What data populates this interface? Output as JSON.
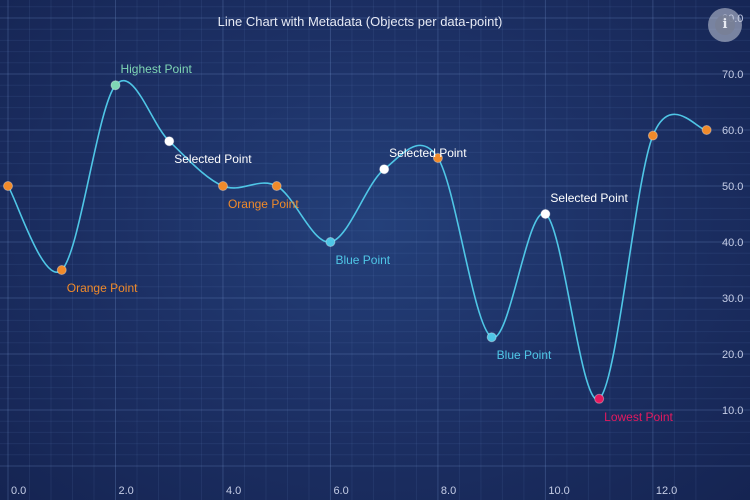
{
  "chart_data": {
    "type": "line",
    "title": "Line Chart with Metadata (Objects per data-point)",
    "xlim": [
      0,
      13.1
    ],
    "ylim": [
      0,
      80
    ],
    "x_ticks": [
      "0.0",
      "2.0",
      "4.0",
      "6.0",
      "8.0",
      "10.0",
      "12.0"
    ],
    "x_tick_values": [
      0,
      2,
      4,
      6,
      8,
      10,
      12
    ],
    "y_ticks": [
      "10.0",
      "20.0",
      "30.0",
      "40.0",
      "50.0",
      "60.0",
      "70.0",
      "80.0"
    ],
    "y_tick_values": [
      10,
      20,
      30,
      40,
      50,
      60,
      70,
      80
    ],
    "y_axis_position": "right",
    "grid": true,
    "line_color": "#4fc6e6",
    "points": [
      {
        "x": 0,
        "y": 50,
        "color": "#f08a2a",
        "label": ""
      },
      {
        "x": 1,
        "y": 35,
        "color": "#f08a2a",
        "label": "Orange Point"
      },
      {
        "x": 2,
        "y": 68,
        "color": "#7fd6b5",
        "label": "Highest Point"
      },
      {
        "x": 3,
        "y": 58,
        "color": "#ffffff",
        "label": "Selected Point"
      },
      {
        "x": 4,
        "y": 50,
        "color": "#f08a2a",
        "label": "Orange Point"
      },
      {
        "x": 5,
        "y": 50,
        "color": "#f08a2a",
        "label": ""
      },
      {
        "x": 6,
        "y": 40,
        "color": "#4fc6e6",
        "label": "Blue Point"
      },
      {
        "x": 7,
        "y": 53,
        "color": "#ffffff",
        "label": "Selected Point"
      },
      {
        "x": 8,
        "y": 55,
        "color": "#f08a2a",
        "label": ""
      },
      {
        "x": 9,
        "y": 23,
        "color": "#4fc6e6",
        "label": "Blue Point"
      },
      {
        "x": 10,
        "y": 45,
        "color": "#ffffff",
        "label": "Selected Point"
      },
      {
        "x": 11,
        "y": 12,
        "color": "#e5195e",
        "label": "Lowest Point"
      },
      {
        "x": 12,
        "y": 59,
        "color": "#f08a2a",
        "label": ""
      },
      {
        "x": 13,
        "y": 60,
        "color": "#f08a2a",
        "label": ""
      }
    ]
  },
  "ui": {
    "info_icon": "info-icon",
    "info_glyph": "i"
  }
}
